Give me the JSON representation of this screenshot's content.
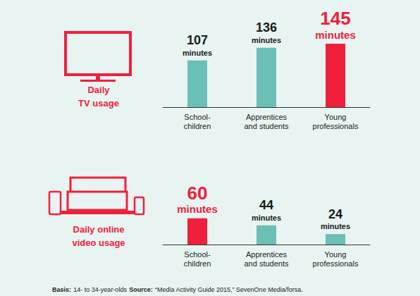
{
  "chart_data": [
    {
      "type": "bar",
      "title": "Daily\nTV usage",
      "categories": [
        "School-\nchildren",
        "Apprentices\nand students",
        "Young\nprofessionals"
      ],
      "values": [
        107,
        136,
        145
      ],
      "value_labels": [
        "107\nminutes",
        "136\nminutes",
        "145\nminutes"
      ],
      "colors": [
        "#6bbfb6",
        "#6bbfb6",
        "#f0203c"
      ],
      "ylim": [
        0,
        150
      ],
      "yticks": [
        0,
        150
      ],
      "grid": false,
      "tick_labels": false,
      "data_labels": true
    },
    {
      "type": "bar",
      "title": "Daily online\nvideo usage",
      "categories": [
        "School-\nchildren",
        "Apprentices\nand students",
        "Young\nprofessionals"
      ],
      "values": [
        60,
        44,
        24
      ],
      "value_labels": [
        "60\nminutes",
        "44\nminutes",
        "24\nminutes"
      ],
      "colors": [
        "#f0203c",
        "#6bbfb6",
        "#6bbfb6"
      ],
      "ylim": [
        0,
        150
      ],
      "yticks": [
        0,
        150
      ],
      "grid": false,
      "tick_labels": false,
      "data_labels": true
    }
  ],
  "footnote": {
    "basis_label": "Basis:",
    "basis": "14- to 34-year-olds",
    "source_label": "Source:",
    "source": "“Media Activity Guide 2015,” SevenOne Media/forsa."
  }
}
